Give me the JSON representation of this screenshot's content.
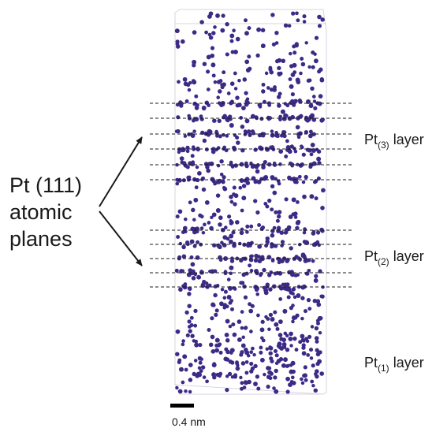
{
  "left_label": {
    "lines": [
      "Pt (111)",
      "atomic",
      "planes"
    ]
  },
  "layers": [
    {
      "base": "Pt",
      "sub": "(3)",
      "suffix": " layer"
    },
    {
      "base": "Pt",
      "sub": "(2)",
      "suffix": " layer"
    },
    {
      "base": "Pt",
      "sub": "(1)",
      "suffix": " layer"
    }
  ],
  "scale_bar": {
    "label": "0.4 nm"
  },
  "colors": {
    "atom": "#3d2a86",
    "text": "#1a1a1a",
    "frame": "#d9d4e2"
  }
}
